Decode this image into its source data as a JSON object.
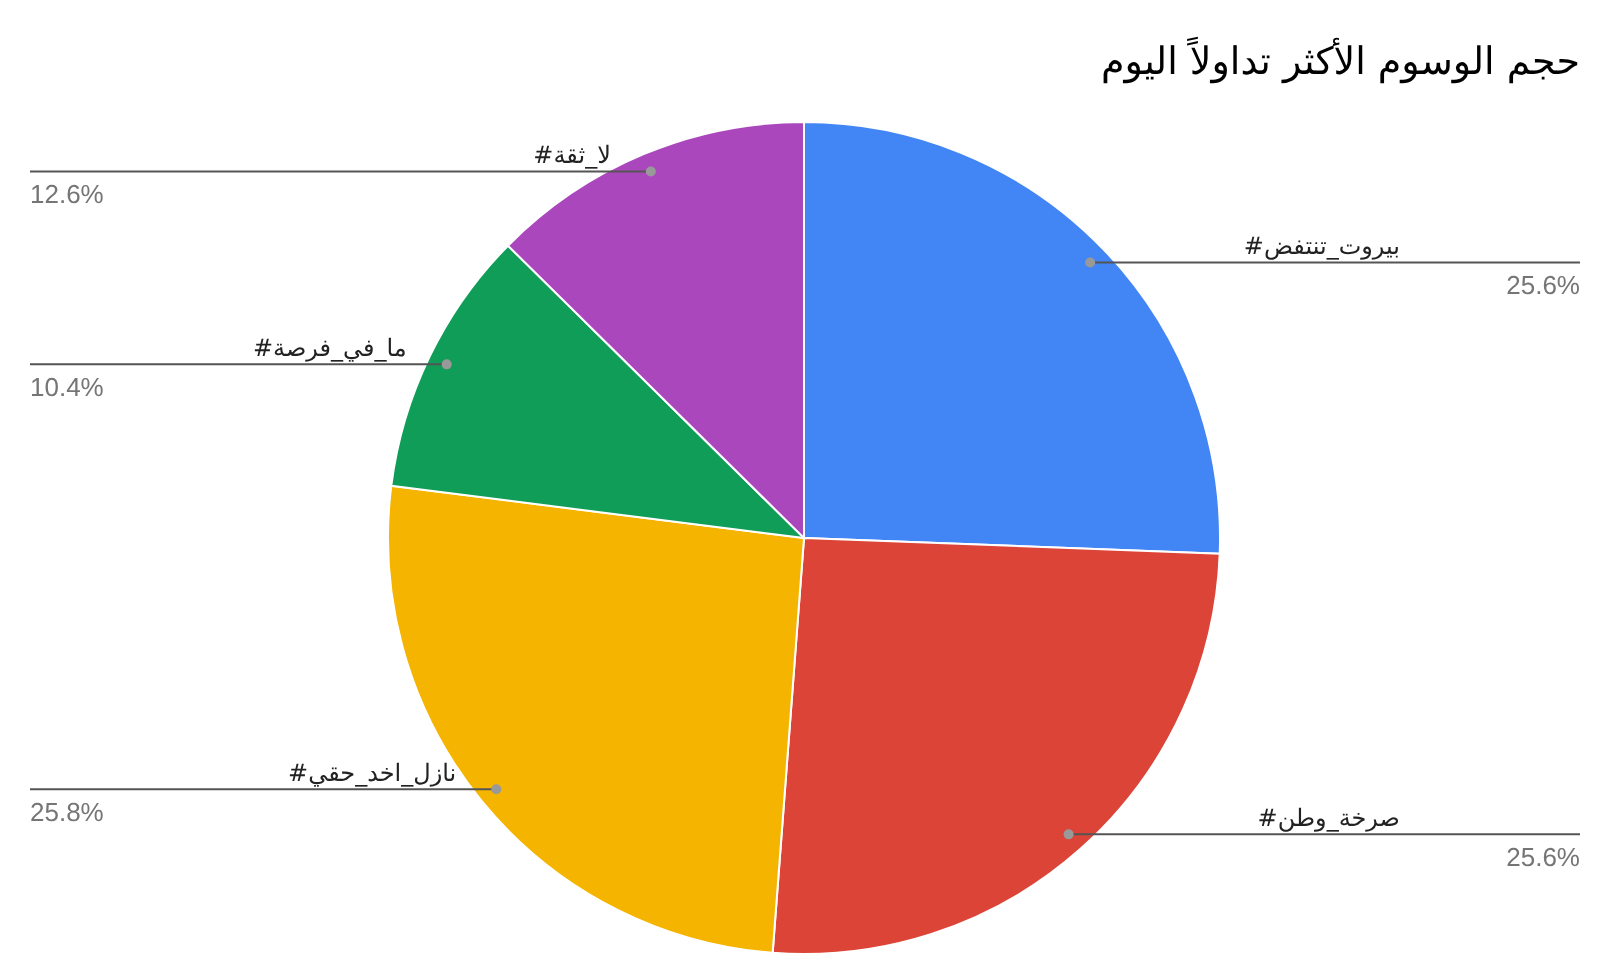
{
  "chart_data": {
    "type": "pie",
    "title": "حجم الوسوم الأكثر تداولاً اليوم",
    "categories": [
      "#بيروت_تنتفض",
      "#صرخة_وطن",
      "#نازل_اخد_حقي",
      "#ما_في_فرصة",
      "#لا_ثقة"
    ],
    "values": [
      25.6,
      25.6,
      25.8,
      10.4,
      12.6
    ],
    "value_labels": [
      "25.6%",
      "25.6%",
      "25.8%",
      "10.4%",
      "12.6%"
    ],
    "colors": [
      "#4285f4",
      "#db4437",
      "#f4b400",
      "#0f9d58",
      "#ab47bc"
    ]
  }
}
